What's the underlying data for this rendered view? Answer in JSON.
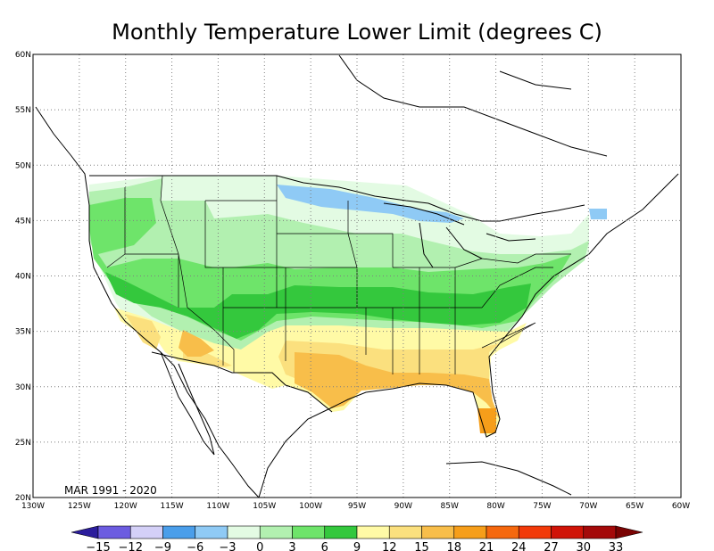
{
  "title": "Monthly Temperature Lower Limit (degrees C)",
  "period": "MAR 1991 - 2020",
  "map": {
    "lon_range": [
      -130,
      -60
    ],
    "lat_range": [
      20,
      60
    ],
    "x_ticks": [
      {
        "lon": -130,
        "label": "130W"
      },
      {
        "lon": -125,
        "label": "125W"
      },
      {
        "lon": -120,
        "label": "120W"
      },
      {
        "lon": -115,
        "label": "115W"
      },
      {
        "lon": -110,
        "label": "110W"
      },
      {
        "lon": -105,
        "label": "105W"
      },
      {
        "lon": -100,
        "label": "100W"
      },
      {
        "lon": -95,
        "label": "95W"
      },
      {
        "lon": -90,
        "label": "90W"
      },
      {
        "lon": -85,
        "label": "85W"
      },
      {
        "lon": -80,
        "label": "80W"
      },
      {
        "lon": -75,
        "label": "75W"
      },
      {
        "lon": -70,
        "label": "70W"
      },
      {
        "lon": -65,
        "label": "65W"
      },
      {
        "lon": -60,
        "label": "60W"
      }
    ],
    "y_ticks": [
      {
        "lat": 20,
        "label": "20N"
      },
      {
        "lat": 25,
        "label": "25N"
      },
      {
        "lat": 30,
        "label": "30N"
      },
      {
        "lat": 35,
        "label": "35N"
      },
      {
        "lat": 40,
        "label": "40N"
      },
      {
        "lat": 45,
        "label": "45N"
      },
      {
        "lat": 50,
        "label": "50N"
      },
      {
        "lat": 55,
        "label": "55N"
      },
      {
        "lat": 60,
        "label": "60N"
      }
    ],
    "gridlines": "dotted"
  },
  "colorbar": {
    "levels": [
      "-15",
      "-12",
      "-9",
      "-6",
      "-3",
      "0",
      "3",
      "6",
      "9",
      "12",
      "15",
      "18",
      "21",
      "24",
      "27",
      "30",
      "33"
    ],
    "colors": [
      "#2b1d9c",
      "#6c5ce0",
      "#d4d0f7",
      "#4a9eea",
      "#8fcaf5",
      "#e3fbe3",
      "#b2f0b0",
      "#6ee46a",
      "#34c83d",
      "#fffaa6",
      "#fbe07e",
      "#f8be4a",
      "#f69e1a",
      "#f5680e",
      "#f23a0a",
      "#d01408",
      "#a40a0a",
      "#7a0303"
    ]
  }
}
